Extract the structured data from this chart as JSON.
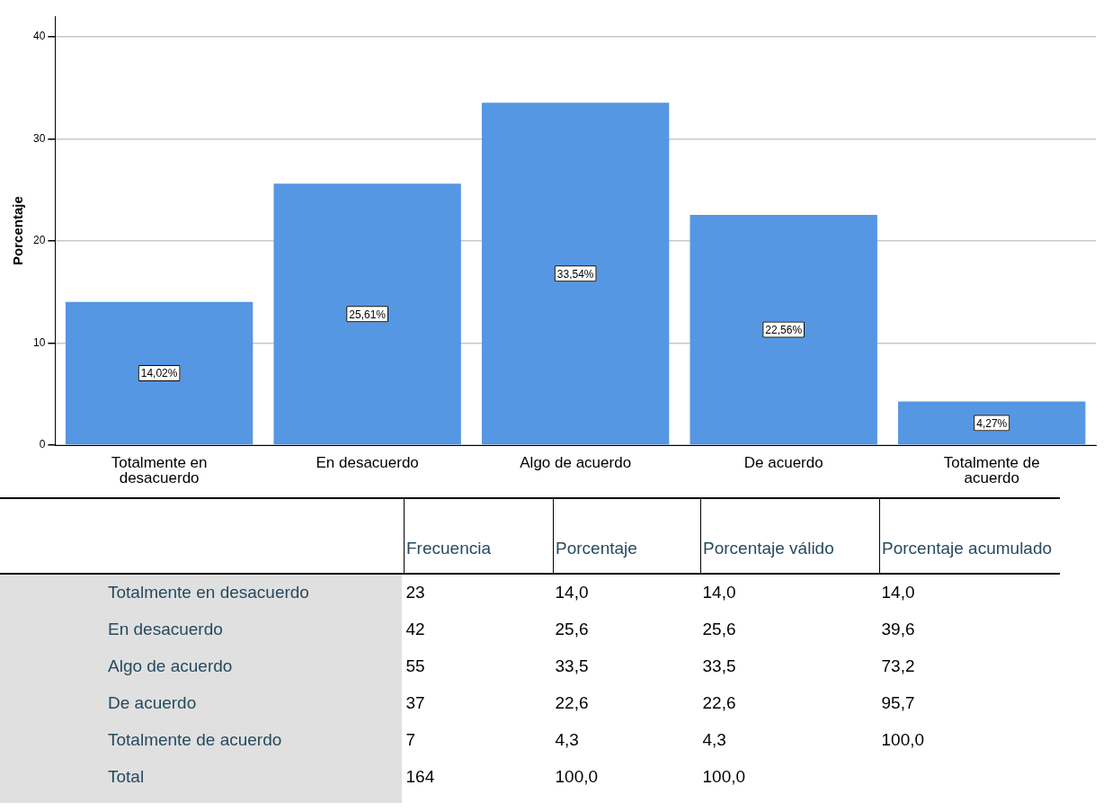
{
  "chart_data": [
    {
      "type": "bar",
      "ylabel": "Porcentaje",
      "categories": [
        "Totalmente en desacuerdo",
        "En desacuerdo",
        "Algo de acuerdo",
        "De acuerdo",
        "Totalmente de acuerdo"
      ],
      "values": [
        14.02,
        25.61,
        33.54,
        22.56,
        4.27
      ],
      "value_labels": [
        "14,02%",
        "25,61%",
        "33,54%",
        "22,56%",
        "4,27%"
      ],
      "color": "#5597e3",
      "ylim": [
        0,
        42
      ],
      "yticks": [
        0,
        10,
        20,
        30,
        40
      ],
      "grid": "y",
      "legend": false
    },
    {
      "type": "heatmap",
      "categories": [
        "Frecuencia",
        "Porcentaje",
        "Porcentaje válido",
        "Porcentaje acumulado"
      ],
      "y_categories": [
        "Totalmente en desacuerdo",
        "En desacuerdo",
        "Algo de acuerdo",
        "De acuerdo",
        "Totalmente de acuerdo",
        "Total"
      ],
      "cells": [
        [
          23,
          14.0,
          14.0,
          14.0
        ],
        [
          42,
          25.6,
          25.6,
          39.6
        ],
        [
          55,
          33.5,
          33.5,
          73.2
        ],
        [
          37,
          22.6,
          22.6,
          95.7
        ],
        [
          7,
          4.3,
          4.3,
          100.0
        ],
        [
          164,
          100.0,
          100.0,
          null
        ]
      ],
      "cell_labels": [
        [
          "23",
          "14,0",
          "14,0",
          "14,0"
        ],
        [
          "42",
          "25,6",
          "25,6",
          "39,6"
        ],
        [
          "55",
          "33,5",
          "33,5",
          "73,2"
        ],
        [
          "37",
          "22,6",
          "22,6",
          "95,7"
        ],
        [
          "7",
          "4,3",
          "4,3",
          "100,0"
        ],
        [
          "164",
          "100,0",
          "100,0",
          null
        ]
      ]
    }
  ]
}
